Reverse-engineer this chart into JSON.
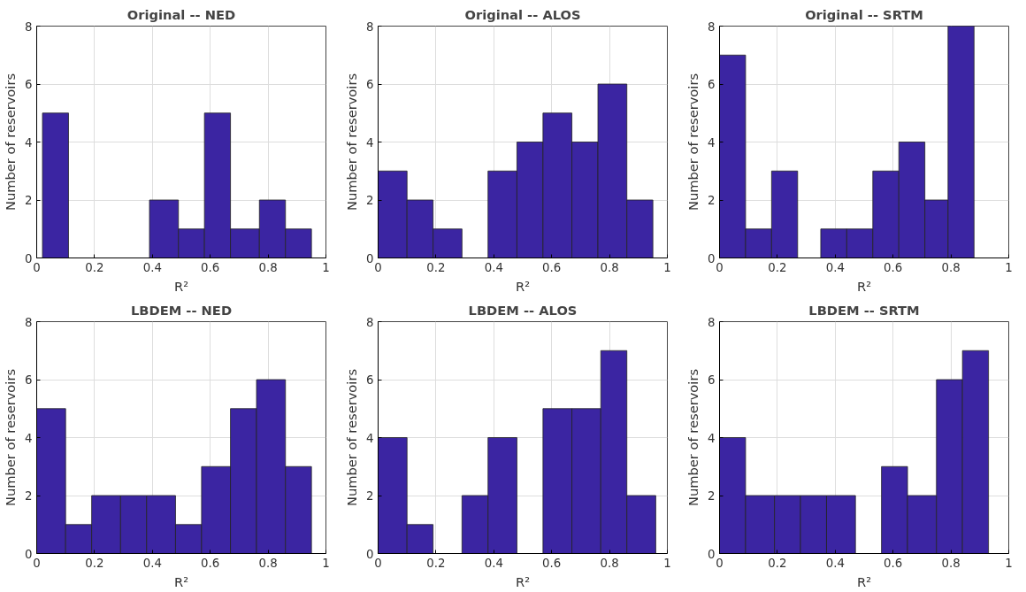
{
  "chart_data": [
    {
      "type": "histogram",
      "title": "Original -- NED",
      "xlabel": "R²",
      "ylabel": "Number of reservoirs",
      "bins": [
        0.02,
        0.11,
        0.21,
        0.3,
        0.39,
        0.49,
        0.58,
        0.67,
        0.77,
        0.86,
        0.95
      ],
      "values": [
        5,
        0,
        0,
        0,
        2,
        1,
        5,
        1,
        2,
        1
      ],
      "color": "#3b25a2",
      "xlim": [
        0,
        1
      ],
      "ylim": [
        0,
        8
      ],
      "xticks": [
        0,
        0.2,
        0.4,
        0.6,
        0.8,
        1
      ],
      "yticks": [
        0,
        2,
        4,
        6,
        8
      ],
      "grid": true
    },
    {
      "type": "histogram",
      "title": "Original -- ALOS",
      "xlabel": "R²",
      "ylabel": "Number of reservoirs",
      "bins": [
        0,
        0.1,
        0.19,
        0.29,
        0.38,
        0.48,
        0.57,
        0.67,
        0.76,
        0.86,
        0.95
      ],
      "values": [
        3,
        2,
        1,
        0,
        3,
        4,
        5,
        4,
        6,
        2
      ],
      "color": "#3b25a2",
      "xlim": [
        0,
        1
      ],
      "ylim": [
        0,
        8
      ],
      "xticks": [
        0,
        0.2,
        0.4,
        0.6,
        0.8,
        1
      ],
      "yticks": [
        0,
        2,
        4,
        6,
        8
      ],
      "grid": true
    },
    {
      "type": "histogram",
      "title": "Original -- SRTM",
      "xlabel": "R²",
      "ylabel": "Number of reservoirs",
      "bins": [
        0,
        0.09,
        0.18,
        0.27,
        0.35,
        0.44,
        0.53,
        0.62,
        0.71,
        0.79,
        0.88
      ],
      "values": [
        7,
        1,
        3,
        0,
        1,
        1,
        3,
        4,
        2,
        8
      ],
      "color": "#3b25a2",
      "xlim": [
        0,
        1
      ],
      "ylim": [
        0,
        8
      ],
      "xticks": [
        0,
        0.2,
        0.4,
        0.6,
        0.8,
        1
      ],
      "yticks": [
        0,
        2,
        4,
        6,
        8
      ],
      "grid": true
    },
    {
      "type": "histogram",
      "title": "LBDEM -- NED",
      "xlabel": "R²",
      "ylabel": "Number of reservoirs",
      "bins": [
        0,
        0.1,
        0.19,
        0.29,
        0.38,
        0.48,
        0.57,
        0.67,
        0.76,
        0.86,
        0.95
      ],
      "values": [
        5,
        1,
        2,
        2,
        2,
        1,
        3,
        5,
        6,
        3
      ],
      "color": "#3b25a2",
      "xlim": [
        0,
        1
      ],
      "ylim": [
        0,
        8
      ],
      "xticks": [
        0,
        0.2,
        0.4,
        0.6,
        0.8,
        1
      ],
      "yticks": [
        0,
        2,
        4,
        6,
        8
      ],
      "grid": true
    },
    {
      "type": "histogram",
      "title": "LBDEM -- ALOS",
      "xlabel": "R²",
      "ylabel": "Number of reservoirs",
      "bins": [
        0,
        0.1,
        0.19,
        0.29,
        0.38,
        0.48,
        0.57,
        0.67,
        0.77,
        0.86,
        0.96
      ],
      "values": [
        4,
        1,
        0,
        2,
        4,
        0,
        5,
        5,
        7,
        2
      ],
      "color": "#3b25a2",
      "xlim": [
        0,
        1
      ],
      "ylim": [
        0,
        8
      ],
      "xticks": [
        0,
        0.2,
        0.4,
        0.6,
        0.8,
        1
      ],
      "yticks": [
        0,
        2,
        4,
        6,
        8
      ],
      "grid": true
    },
    {
      "type": "histogram",
      "title": "LBDEM -- SRTM",
      "xlabel": "R²",
      "ylabel": "Number of reservoirs",
      "bins": [
        0,
        0.09,
        0.19,
        0.28,
        0.37,
        0.47,
        0.56,
        0.65,
        0.75,
        0.84,
        0.93
      ],
      "values": [
        4,
        2,
        2,
        2,
        2,
        0,
        3,
        2,
        6,
        7
      ],
      "color": "#3b25a2",
      "xlim": [
        0,
        1
      ],
      "ylim": [
        0,
        8
      ],
      "xticks": [
        0,
        0.2,
        0.4,
        0.6,
        0.8,
        1
      ],
      "yticks": [
        0,
        2,
        4,
        6,
        8
      ],
      "grid": true
    }
  ]
}
